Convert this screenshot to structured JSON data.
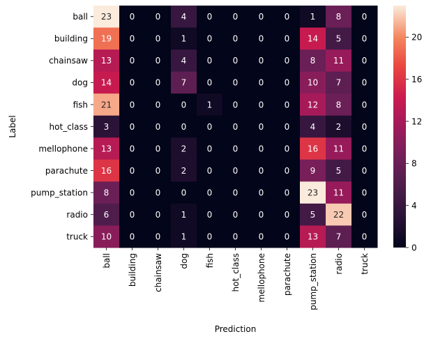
{
  "chart_data": {
    "type": "heatmap",
    "title": "",
    "xlabel": "Prediction",
    "ylabel": "Label",
    "x_categories": [
      "ball",
      "building",
      "chainsaw",
      "dog",
      "fish",
      "hot_class",
      "mellophone",
      "parachute",
      "pump_station",
      "radio",
      "truck"
    ],
    "y_categories": [
      "ball",
      "building",
      "chainsaw",
      "dog",
      "fish",
      "hot_class",
      "mellophone",
      "parachute",
      "pump_station",
      "radio",
      "truck"
    ],
    "values": [
      [
        23,
        0,
        0,
        4,
        0,
        0,
        0,
        0,
        1,
        8,
        0
      ],
      [
        19,
        0,
        0,
        1,
        0,
        0,
        0,
        0,
        14,
        5,
        0
      ],
      [
        13,
        0,
        0,
        4,
        0,
        0,
        0,
        0,
        8,
        11,
        0
      ],
      [
        14,
        0,
        0,
        7,
        0,
        0,
        0,
        0,
        10,
        7,
        0
      ],
      [
        21,
        0,
        0,
        0,
        1,
        0,
        0,
        0,
        12,
        8,
        0
      ],
      [
        3,
        0,
        0,
        0,
        0,
        0,
        0,
        0,
        4,
        2,
        0
      ],
      [
        13,
        0,
        0,
        2,
        0,
        0,
        0,
        0,
        16,
        11,
        0
      ],
      [
        16,
        0,
        0,
        2,
        0,
        0,
        0,
        0,
        9,
        5,
        0
      ],
      [
        8,
        0,
        0,
        0,
        0,
        0,
        0,
        0,
        23,
        11,
        0
      ],
      [
        6,
        0,
        0,
        1,
        0,
        0,
        0,
        0,
        5,
        22,
        0
      ],
      [
        10,
        0,
        0,
        1,
        0,
        0,
        0,
        0,
        13,
        7,
        0
      ]
    ],
    "color_range": [
      0,
      23
    ],
    "colorbar_ticks": [
      0,
      4,
      8,
      12,
      16,
      20
    ],
    "colormap": "rocket",
    "grid": false
  }
}
